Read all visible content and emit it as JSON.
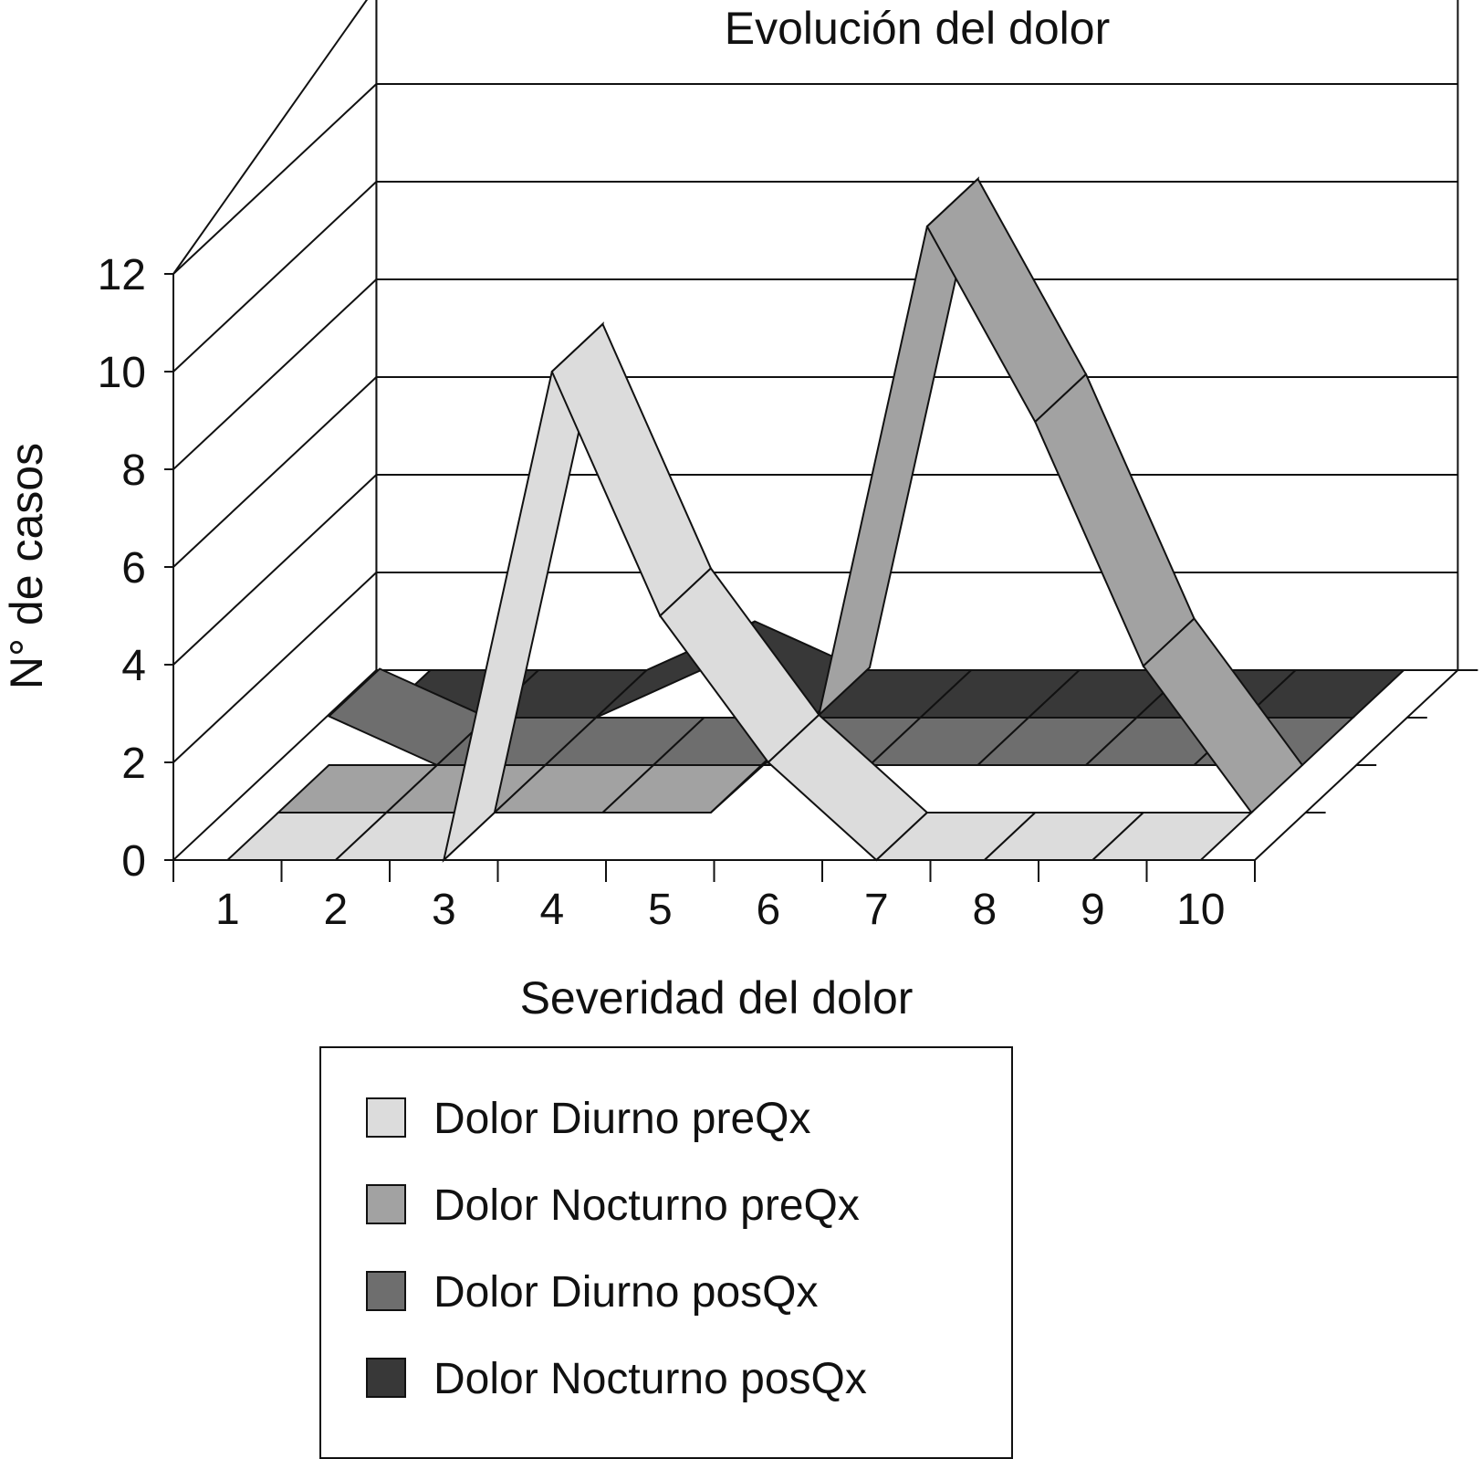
{
  "chart_data": {
    "type": "line",
    "style": "3d-ribbon",
    "title": "Evolución del dolor",
    "xlabel": "Severidad del dolor",
    "ylabel": "N° de casos",
    "categories": [
      "1",
      "2",
      "3",
      "4",
      "5",
      "6",
      "7",
      "8",
      "9",
      "10"
    ],
    "ylim": [
      0,
      12
    ],
    "yticks": [
      "0",
      "2",
      "4",
      "6",
      "8",
      "10",
      "12"
    ],
    "grid": true,
    "legend": "bottom",
    "series": [
      {
        "name": "Dolor Diurno preQx",
        "color": "#dcdcdc",
        "values": [
          0,
          0,
          0,
          10,
          5,
          2,
          0,
          0,
          0,
          0
        ]
      },
      {
        "name": "Dolor Nocturno preQx",
        "color": "#a2a2a2",
        "values": [
          0,
          0,
          0,
          0,
          0,
          2,
          12,
          8,
          3,
          0
        ]
      },
      {
        "name": "Dolor Diurno posQx",
        "color": "#6e6e6e",
        "values": [
          1,
          0,
          0,
          0,
          0,
          0,
          0,
          0,
          0,
          0
        ]
      },
      {
        "name": "Dolor Nocturno posQx",
        "color": "#383838",
        "values": [
          0,
          0,
          0,
          1,
          0,
          0,
          0,
          0,
          0,
          0
        ]
      }
    ]
  }
}
